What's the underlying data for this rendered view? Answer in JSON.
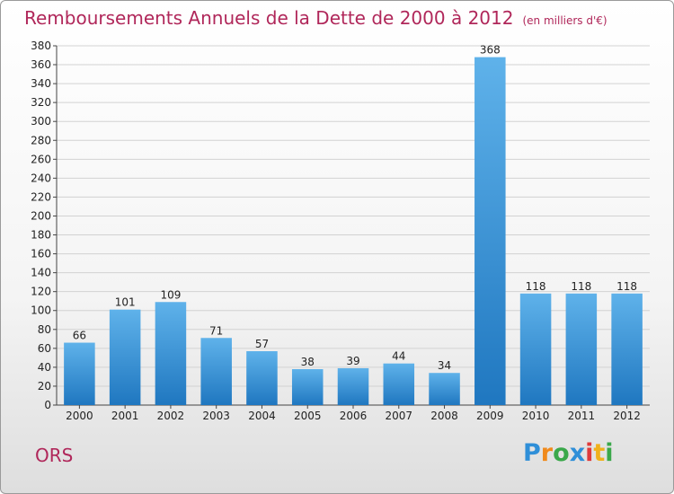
{
  "title": "Remboursements Annuels de la Dette de 2000 à 2012",
  "unit_note": "(en milliers d'€)",
  "place_name": "ORS",
  "logo": {
    "letters": [
      "P",
      "r",
      "o",
      "x",
      "i",
      "t",
      "i"
    ],
    "colors": [
      "#2f8fd8",
      "#f08a1c",
      "#3aa84a",
      "#2f8fd8",
      "#e03a3a",
      "#f0b11c",
      "#3aa84a"
    ]
  },
  "colors": {
    "bar_top": "#5fb2ea",
    "bar_bottom": "#1f77c0",
    "title": "#b0275a"
  },
  "chart_data": {
    "type": "bar",
    "title": "Remboursements Annuels de la Dette de 2000 à 2012",
    "categories": [
      "2000",
      "2001",
      "2002",
      "2003",
      "2004",
      "2005",
      "2006",
      "2007",
      "2008",
      "2009",
      "2010",
      "2011",
      "2012"
    ],
    "values": [
      66,
      101,
      109,
      71,
      57,
      38,
      39,
      44,
      34,
      368,
      118,
      118,
      118
    ],
    "xlabel": "",
    "ylabel": "",
    "ylim": [
      0,
      380
    ],
    "yticks": [
      0,
      20,
      40,
      60,
      80,
      100,
      120,
      140,
      160,
      180,
      200,
      220,
      240,
      260,
      280,
      300,
      320,
      340,
      360,
      380
    ],
    "grid": true,
    "legend": "none"
  }
}
